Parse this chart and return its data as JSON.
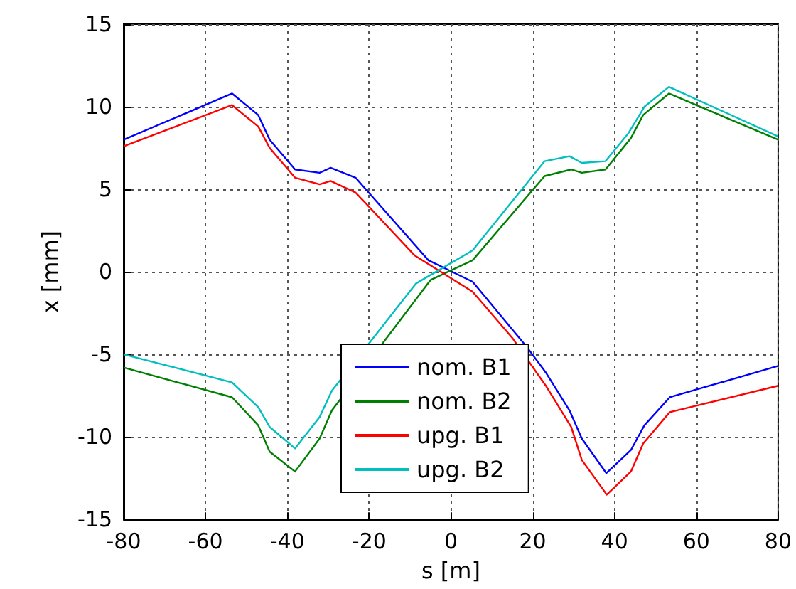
{
  "chart_data": {
    "type": "line",
    "xlabel": "s [m]",
    "ylabel": "x [mm]",
    "xlim": [
      -80,
      80
    ],
    "ylim": [
      -15,
      15
    ],
    "xticks": [
      -80,
      -60,
      -40,
      -20,
      0,
      20,
      40,
      60,
      80
    ],
    "yticks": [
      -15,
      -10,
      -5,
      0,
      5,
      10,
      15
    ],
    "grid": true,
    "legend": "bottom",
    "marker": "none",
    "line_style": "solid",
    "series": [
      {
        "name": "nom. B1",
        "color": "#0000ff",
        "x": [
          -80,
          -53.5,
          -47.1,
          -44.3,
          -38.1,
          -32.1,
          -29.4,
          -23.3,
          -5.5,
          5.3,
          18.7,
          23.2,
          29,
          32,
          38,
          44,
          47.3,
          53.5,
          80
        ],
        "values": [
          8.0,
          10.8,
          9.5,
          8.0,
          6.2,
          6.0,
          6.3,
          5.7,
          0.7,
          -0.6,
          -4.6,
          -6.1,
          -8.4,
          -10.1,
          -12.2,
          -10.8,
          -9.3,
          -7.6,
          -5.7
        ]
      },
      {
        "name": "nom. B2",
        "color": "#008000",
        "x": [
          -80,
          -53.5,
          -47.1,
          -44.3,
          -38.1,
          -32.1,
          -29.1,
          -5,
          5.3,
          22.9,
          29.4,
          32,
          37.8,
          44,
          47,
          53.3,
          80
        ],
        "values": [
          -5.8,
          -7.6,
          -9.3,
          -10.9,
          -12.1,
          -10.1,
          -8.4,
          -0.5,
          0.7,
          5.8,
          6.2,
          6.0,
          6.2,
          8.1,
          9.5,
          10.8,
          8.0
        ]
      },
      {
        "name": "upg. B1",
        "color": "#ff0000",
        "x": [
          -80,
          -53.5,
          -47.1,
          -44.3,
          -38.1,
          -32.1,
          -29.4,
          -23.3,
          -8.9,
          5.3,
          15,
          23.2,
          29.4,
          32,
          38.1,
          44,
          47,
          53.5,
          80
        ],
        "values": [
          7.6,
          10.1,
          8.8,
          7.5,
          5.7,
          5.3,
          5.5,
          4.8,
          1.0,
          -1.2,
          -4.0,
          -6.9,
          -9.4,
          -11.4,
          -13.5,
          -12.1,
          -10.4,
          -8.5,
          -6.9
        ]
      },
      {
        "name": "upg. B2",
        "color": "#00bfbf",
        "x": [
          -80,
          -53.5,
          -47.1,
          -44.3,
          -38.1,
          -32.1,
          -29.1,
          -8.5,
          5.3,
          22.9,
          29,
          32,
          37.8,
          43.4,
          47.3,
          53.3,
          80
        ],
        "values": [
          -5.0,
          -6.7,
          -8.2,
          -9.4,
          -10.7,
          -8.8,
          -7.2,
          -0.7,
          1.3,
          6.7,
          7.0,
          6.6,
          6.7,
          8.4,
          10.0,
          11.2,
          8.2
        ]
      }
    ]
  }
}
